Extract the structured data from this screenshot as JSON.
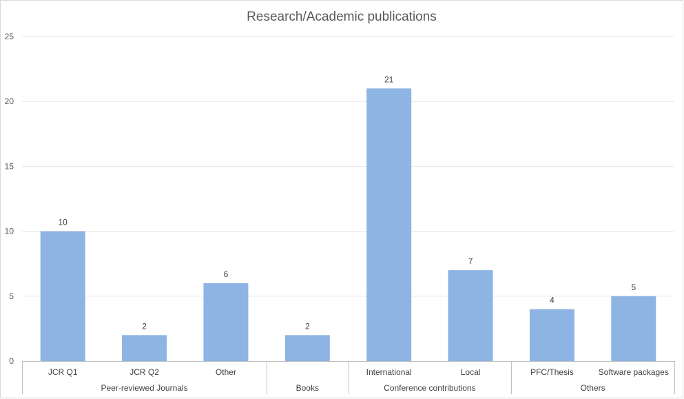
{
  "chart_data": {
    "type": "bar",
    "title": "Research/Academic publications",
    "xlabel": "",
    "ylabel": "",
    "ylim": [
      0,
      25
    ],
    "yticks": [
      0,
      5,
      10,
      15,
      20,
      25
    ],
    "grid": true,
    "legend": "none",
    "bar_color": "#8DB4E2",
    "categories": [
      "JCR Q1",
      "JCR Q2",
      "Other",
      "",
      "International",
      "Local",
      "PFC/Thesis",
      "Software packages"
    ],
    "values": [
      10,
      2,
      6,
      2,
      21,
      7,
      4,
      5
    ],
    "groups": [
      {
        "label": "Peer-reviewed Journals",
        "start": 0,
        "end": 2
      },
      {
        "label": "Books",
        "start": 3,
        "end": 3
      },
      {
        "label": "Conference contributions",
        "start": 4,
        "end": 5
      },
      {
        "label": "Others",
        "start": 6,
        "end": 7
      }
    ]
  }
}
